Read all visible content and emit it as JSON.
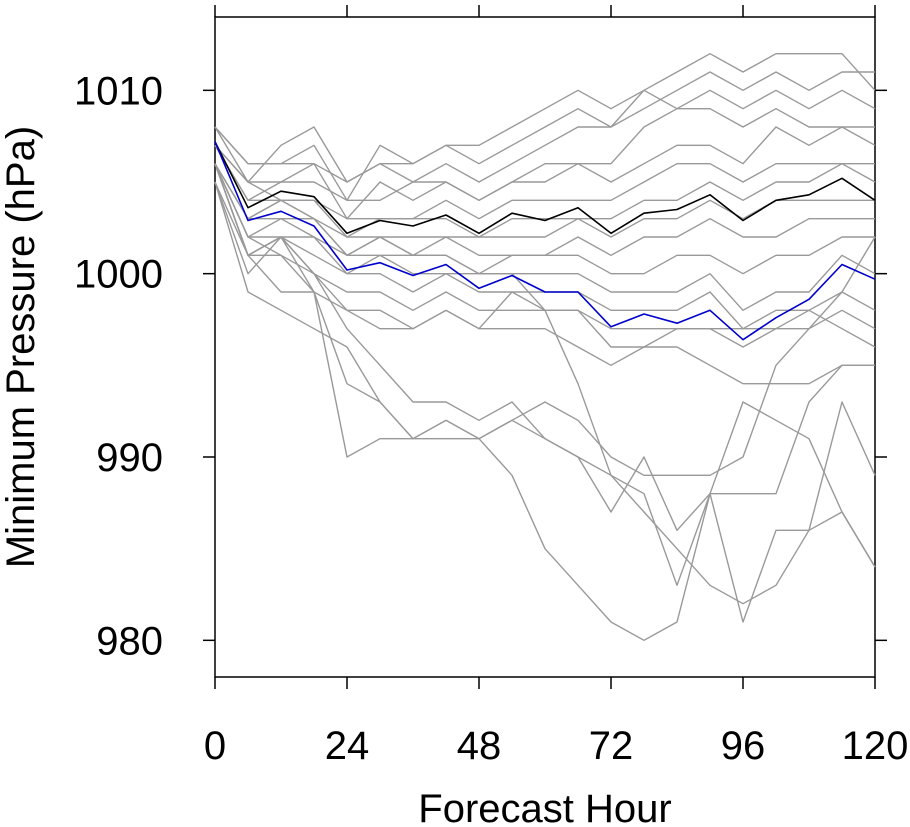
{
  "chart_data": {
    "type": "line",
    "xlabel": "Forecast Hour",
    "ylabel": "Minimum Pressure (hPa)",
    "xlim": [
      0,
      120
    ],
    "ylim": [
      978,
      1014
    ],
    "xticks": [
      0,
      24,
      48,
      72,
      96,
      120
    ],
    "yticks": [
      980,
      990,
      1000,
      1010
    ],
    "grid": false,
    "legend": "none",
    "x": [
      0,
      6,
      12,
      18,
      24,
      30,
      36,
      42,
      48,
      54,
      60,
      66,
      72,
      78,
      84,
      90,
      96,
      102,
      108,
      114,
      120
    ],
    "series": [
      {
        "color": "#000000",
        "values": [
          1007.2,
          1003.6,
          1004.5,
          1004.2,
          1002.2,
          1002.9,
          1002.6,
          1003.2,
          1002.2,
          1003.3,
          1002.9,
          1003.6,
          1002.2,
          1003.3,
          1003.5,
          1004.3,
          1002.9,
          1004.0,
          1004.3,
          1005.2,
          1004.0
        ]
      },
      {
        "color": "#0000cc",
        "values": [
          1007.2,
          1002.9,
          1003.4,
          1002.6,
          1000.2,
          1000.6,
          999.9,
          1000.5,
          999.2,
          999.9,
          999.0,
          999.0,
          997.1,
          997.8,
          997.3,
          998.0,
          996.4,
          997.6,
          998.6,
          1000.5,
          999.7
        ]
      },
      {
        "color": "#999999",
        "values": [
          1008,
          1006,
          1006,
          1006,
          1005,
          1006,
          1006,
          1007,
          1006,
          1007,
          1008,
          1009,
          1008,
          1009,
          1010,
          1011,
          1010,
          1011,
          1010,
          1011,
          1011
        ]
      },
      {
        "color": "#999999",
        "values": [
          1008,
          1005,
          1007,
          1008,
          1005,
          1006,
          1005,
          1006,
          1005,
          1006,
          1007,
          1008,
          1008,
          1010,
          1011,
          1012,
          1011,
          1012,
          1012,
          1012,
          1010
        ]
      },
      {
        "color": "#999999",
        "values": [
          1008,
          1006,
          1006,
          1007,
          1004,
          1007,
          1006,
          1007,
          1007,
          1008,
          1009,
          1010,
          1009,
          1010,
          1009,
          1010,
          1009,
          1010,
          1009,
          1010,
          1009
        ]
      },
      {
        "color": "#999999",
        "values": [
          1007,
          1005,
          1005,
          1005,
          1004,
          1004,
          1005,
          1005,
          1004,
          1005,
          1006,
          1006,
          1006,
          1008,
          1009,
          1009,
          1008,
          1009,
          1008,
          1008,
          1008
        ]
      },
      {
        "color": "#999999",
        "values": [
          1007,
          1004,
          1005,
          1006,
          1003,
          1005,
          1004,
          1005,
          1004,
          1005,
          1005,
          1006,
          1005,
          1006,
          1007,
          1007,
          1006,
          1008,
          1007,
          1008,
          1007
        ]
      },
      {
        "color": "#999999",
        "values": [
          1007,
          1005,
          1004,
          1004,
          1003,
          1003,
          1003,
          1004,
          1003,
          1004,
          1004,
          1004,
          1004,
          1005,
          1006,
          1006,
          1005,
          1006,
          1006,
          1006,
          1006
        ]
      },
      {
        "color": "#999999",
        "values": [
          1007,
          1004,
          1004,
          1004,
          1002,
          1003,
          1003,
          1003,
          1002,
          1003,
          1003,
          1003,
          1003,
          1004,
          1004,
          1005,
          1004,
          1005,
          1005,
          1006,
          1005
        ]
      },
      {
        "color": "#999999",
        "values": [
          1006,
          1003,
          1004,
          1003,
          1002,
          1002,
          1002,
          1002,
          1002,
          1002,
          1002,
          1003,
          1002,
          1003,
          1003,
          1004,
          1003,
          1004,
          1004,
          1004,
          1004
        ]
      },
      {
        "color": "#999999",
        "values": [
          1006,
          1003,
          1003,
          1003,
          1001,
          1002,
          1001,
          1002,
          1001,
          1001,
          1001,
          1002,
          1001,
          1002,
          1002,
          1003,
          1002,
          1002,
          1003,
          1003,
          1003
        ]
      },
      {
        "color": "#999999",
        "values": [
          1006,
          1002,
          1002,
          1002,
          1001,
          1001,
          1001,
          1001,
          1000,
          1001,
          1001,
          1001,
          1000,
          1000,
          1001,
          1001,
          1000,
          1001,
          1001,
          1002,
          1002
        ]
      },
      {
        "color": "#999999",
        "values": [
          1006,
          1002,
          1003,
          1002,
          1000,
          1001,
          1000,
          1000,
          1000,
          1000,
          1000,
          1000,
          999,
          999,
          999,
          1000,
          998,
          999,
          999,
          1001,
          1000
        ]
      },
      {
        "color": "#999999",
        "values": [
          1006,
          1001,
          1002,
          1001,
          1000,
          1000,
          999,
          1000,
          999,
          999,
          999,
          999,
          998,
          998,
          998,
          999,
          997,
          998,
          998,
          999,
          998
        ]
      },
      {
        "color": "#999999",
        "values": [
          1006,
          1001,
          1002,
          1000,
          999,
          999,
          998,
          999,
          998,
          998,
          998,
          998,
          997,
          997,
          997,
          997,
          996,
          997,
          997,
          998,
          997
        ]
      },
      {
        "color": "#999999",
        "values": [
          1005,
          1000,
          1002,
          999,
          998,
          997,
          997,
          998,
          997,
          999,
          998,
          998,
          996,
          996,
          997,
          997,
          997,
          997,
          998,
          997,
          996
        ]
      },
      {
        "color": "#999999",
        "values": [
          1006,
          1001,
          1002,
          1000,
          998,
          998,
          997,
          998,
          997,
          997,
          997,
          996,
          995,
          996,
          996,
          995,
          994,
          994,
          994,
          995,
          995
        ]
      },
      {
        "color": "#999999",
        "values": [
          1006,
          1001,
          1001,
          1000,
          997,
          995,
          993,
          993,
          992,
          993,
          991,
          990,
          987,
          990,
          986,
          988,
          988,
          988,
          993,
          995,
          995
        ]
      },
      {
        "color": "#999999",
        "values": [
          1005,
          999,
          998,
          997,
          996,
          993,
          991,
          991,
          991,
          989,
          985,
          983,
          981,
          980,
          981,
          988,
          981,
          986,
          986,
          993,
          989
        ]
      },
      {
        "color": "#999999",
        "values": [
          1005,
          1001,
          999,
          999,
          994,
          993,
          991,
          992,
          991,
          992,
          991,
          990,
          989,
          987,
          985,
          983,
          982,
          983,
          986,
          987,
          984
        ]
      },
      {
        "color": "#999999",
        "values": [
          1006,
          1002,
          1001,
          999,
          990,
          991,
          991,
          992,
          991,
          992,
          993,
          992,
          990,
          989,
          989,
          989,
          990,
          995,
          997,
          999,
          1002
        ]
      },
      {
        "color": "#999999",
        "values": [
          1006,
          1003,
          1004,
          1003,
          1001,
          1002,
          1001,
          1001,
          1000,
          1000,
          998,
          994,
          989,
          988,
          983,
          988,
          993,
          992,
          991,
          987,
          984
        ]
      }
    ]
  }
}
